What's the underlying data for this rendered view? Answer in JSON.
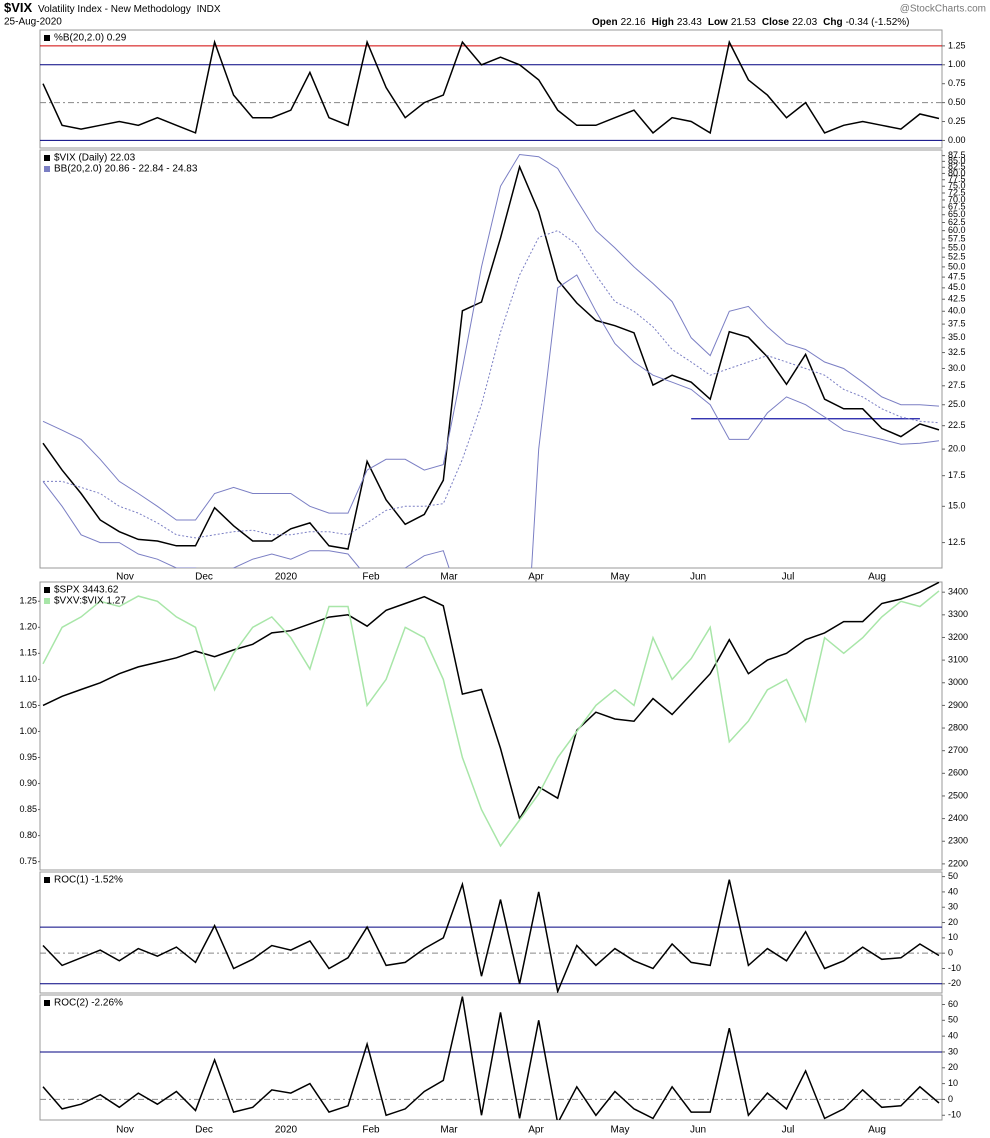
{
  "header": {
    "symbol": "$VIX",
    "name": "Volatility Index - New Methodology",
    "exchange": "INDX",
    "date": "25-Aug-2020",
    "quote": [
      {
        "label": "Open",
        "value": 22.16
      },
      {
        "label": "High",
        "value": 23.43
      },
      {
        "label": "Low",
        "value": 21.53
      },
      {
        "label": "Close",
        "value": 22.03
      },
      {
        "label": "Chg",
        "value": "-0.34 (-1.52%)"
      }
    ],
    "watermark": "@StockCharts.com"
  },
  "x_labels": [
    "Nov",
    "Dec",
    "2020",
    "Feb",
    "Mar",
    "Apr",
    "May",
    "Jun",
    "Jul",
    "Aug"
  ],
  "chart_data": [
    {
      "type": "line",
      "ylim": [
        -0.1,
        1.46
      ],
      "yticks": [
        {
          "value": 0,
          "label": "0.00"
        },
        0.25,
        {
          "value": 0.5,
          "label": "0.50"
        },
        0.75,
        {
          "value": 1,
          "label": "1.00"
        },
        1.25
      ],
      "reference_lines": [
        {
          "value": 1.25,
          "color": "#d00000"
        },
        {
          "value": 1,
          "color": "#000080"
        },
        {
          "value": 0.5,
          "color": "#888888",
          "dashed": true
        },
        {
          "value": 0,
          "color": "#000080"
        }
      ],
      "series": [
        {
          "name": "%B(20,2.0) 0.29",
          "color": "#000000",
          "values": [
            0.75,
            0.2,
            0.15,
            0.2,
            0.25,
            0.2,
            0.3,
            0.2,
            0.1,
            1.3,
            0.6,
            0.3,
            0.3,
            0.4,
            0.9,
            0.3,
            0.2,
            1.3,
            0.7,
            0.3,
            0.5,
            0.6,
            1.3,
            1.0,
            1.1,
            1.0,
            0.8,
            0.4,
            0.2,
            0.2,
            0.3,
            0.4,
            0.1,
            0.3,
            0.25,
            0.1,
            1.3,
            0.8,
            0.6,
            0.3,
            0.5,
            0.1,
            0.2,
            0.25,
            0.2,
            0.15,
            0.35,
            0.29
          ]
        }
      ]
    },
    {
      "type": "line",
      "log_scale": true,
      "ylim": [
        11,
        90
      ],
      "yticks": [
        12.5,
        {
          "value": 15,
          "label": "15.0"
        },
        17.5,
        {
          "value": 20,
          "label": "20.0"
        },
        22.5,
        {
          "value": 25,
          "label": "25.0"
        },
        27.5,
        {
          "value": 30,
          "label": "30.0"
        },
        32.5,
        {
          "value": 35,
          "label": "35.0"
        },
        37.5,
        {
          "value": 40,
          "label": "40.0"
        },
        42.5,
        {
          "value": 45,
          "label": "45.0"
        },
        47.5,
        {
          "value": 50,
          "label": "50.0"
        },
        52.5,
        {
          "value": 55,
          "label": "55.0"
        },
        57.5,
        {
          "value": 60,
          "label": "60.0"
        },
        62.5,
        {
          "value": 65,
          "label": "65.0"
        },
        67.5,
        {
          "value": 70,
          "label": "70.0"
        },
        72.5,
        {
          "value": 75,
          "label": "75.0"
        },
        77.5,
        {
          "value": 80,
          "label": "80.0"
        },
        82.5,
        {
          "value": 85,
          "label": "85.0"
        },
        87.5
      ],
      "hline": {
        "value": 23.3,
        "color": "#1a1aa6"
      },
      "series": [
        {
          "name": "$VIX (Daily) 22.03",
          "color": "#000000",
          "values": [
            20.6,
            18,
            16,
            14,
            13.2,
            12.7,
            12.6,
            12.3,
            12.3,
            14.9,
            13.6,
            12.6,
            12.6,
            13.4,
            13.8,
            12.3,
            12.1,
            18.8,
            15.5,
            13.7,
            14.4,
            17.1,
            40.1,
            41.9,
            57.8,
            82.7,
            66,
            46.8,
            41.7,
            38.2,
            37.2,
            35.9,
            27.6,
            29,
            28,
            25.7,
            36.1,
            35.1,
            31.8,
            27.7,
            32.2,
            25.7,
            24.5,
            24.5,
            22.2,
            21.3,
            22.7,
            22.03
          ]
        },
        {
          "name": "BB(20,2.0) 20.86 - 22.84 - 24.83",
          "color": "#7b7fc4",
          "upper": [
            23,
            22,
            21,
            19,
            17,
            16,
            15,
            14,
            14,
            16,
            16.5,
            16,
            16,
            16,
            15,
            14.5,
            14.5,
            18,
            19,
            19,
            18,
            18.5,
            30,
            50,
            75,
            88,
            87,
            82,
            70,
            60,
            55,
            50,
            46,
            42,
            35,
            32,
            40,
            41,
            37,
            34,
            33,
            31,
            30,
            28,
            26,
            25,
            25,
            24.83
          ],
          "values": [
            17,
            17,
            16.5,
            16,
            15,
            14.5,
            13.8,
            13,
            12.8,
            13,
            13.2,
            13.3,
            13,
            13,
            13.2,
            13.2,
            13,
            13.8,
            14.7,
            15,
            15,
            15.2,
            19,
            25,
            36,
            48,
            58,
            60,
            56,
            48,
            42,
            40,
            37,
            33,
            31,
            29,
            30,
            31,
            32,
            31,
            30,
            29,
            27,
            26,
            24.5,
            23.5,
            23,
            22.84
          ],
          "lower": [
            17,
            15,
            13,
            12.5,
            12.5,
            11.8,
            11.5,
            11,
            11,
            10.5,
            11,
            11.5,
            11.8,
            11.5,
            12,
            12,
            11.8,
            10.5,
            10.5,
            11,
            11.7,
            12,
            9,
            3,
            2,
            4,
            20,
            45,
            48,
            40,
            34,
            31,
            29,
            28,
            27,
            25,
            21,
            21,
            24,
            26,
            25,
            23.5,
            22,
            21.5,
            21,
            20.5,
            20.6,
            20.86
          ]
        }
      ]
    },
    {
      "type": "line",
      "ylim": [
        0.734,
        1.287
      ],
      "y2lim": [
        2173,
        3445
      ],
      "yticks": [
        0.75,
        {
          "value": 0.8,
          "label": "0.80"
        },
        0.85,
        {
          "value": 0.9,
          "label": "0.90"
        },
        0.95,
        {
          "value": 1,
          "label": "1.00"
        },
        1.05,
        {
          "value": 1.1,
          "label": "1.10"
        },
        1.15,
        {
          "value": 1.2,
          "label": "1.20"
        },
        1.25
      ],
      "y2ticks": [
        2200,
        2300,
        2400,
        2500,
        2600,
        2700,
        2800,
        2900,
        3000,
        3100,
        3200,
        3300,
        3400
      ],
      "series": [
        {
          "name": "$SPX 3443.62",
          "color": "#000000",
          "axis": "y2",
          "values": [
            2900,
            2940,
            2970,
            3000,
            3040,
            3070,
            3090,
            3110,
            3140,
            3115,
            3145,
            3170,
            3220,
            3230,
            3260,
            3290,
            3300,
            3250,
            3320,
            3350,
            3380,
            3340,
            2950,
            2970,
            2710,
            2400,
            2540,
            2490,
            2790,
            2870,
            2840,
            2830,
            2930,
            2860,
            2950,
            3040,
            3190,
            3040,
            3100,
            3130,
            3190,
            3220,
            3270,
            3270,
            3350,
            3370,
            3400,
            3443.62
          ]
        },
        {
          "name": "$VXV:$VIX 1.27",
          "color": "#a8e6a8",
          "values": [
            1.13,
            1.2,
            1.22,
            1.25,
            1.24,
            1.26,
            1.25,
            1.22,
            1.2,
            1.08,
            1.15,
            1.2,
            1.22,
            1.18,
            1.12,
            1.24,
            1.24,
            1.05,
            1.1,
            1.2,
            1.18,
            1.1,
            0.95,
            0.85,
            0.78,
            0.83,
            0.88,
            0.95,
            1.0,
            1.05,
            1.08,
            1.05,
            1.18,
            1.1,
            1.14,
            1.2,
            0.98,
            1.02,
            1.08,
            1.1,
            1.02,
            1.18,
            1.15,
            1.18,
            1.22,
            1.25,
            1.24,
            1.27
          ]
        }
      ]
    },
    {
      "type": "line",
      "ylim": [
        -26,
        53
      ],
      "yticks": [
        -20,
        -10,
        0,
        10,
        20,
        30,
        40,
        50
      ],
      "reference_lines": [
        {
          "value": 17,
          "color": "#000080"
        },
        {
          "value": -20,
          "color": "#000080"
        },
        {
          "value": 0,
          "color": "#888888",
          "dashed": true
        }
      ],
      "series": [
        {
          "name": "ROC(1) -1.52%",
          "color": "#000000",
          "values": [
            5,
            -8,
            -3,
            2,
            -5,
            3,
            -2,
            4,
            -6,
            18,
            -10,
            -4,
            5,
            2,
            8,
            -10,
            -3,
            17,
            -8,
            -6,
            3,
            10,
            45,
            -15,
            35,
            -20,
            40,
            -25,
            5,
            -8,
            3,
            -5,
            -10,
            6,
            -6,
            -8,
            48,
            -8,
            3,
            -5,
            14,
            -10,
            -5,
            4,
            -4,
            -3,
            6,
            -1.52
          ]
        }
      ]
    },
    {
      "type": "line",
      "ylim": [
        -13,
        66
      ],
      "yticks": [
        -10,
        0,
        10,
        20,
        30,
        40,
        50,
        60
      ],
      "reference_lines": [
        {
          "value": 30,
          "color": "#000080"
        },
        {
          "value": 0,
          "color": "#888888",
          "dashed": true
        }
      ],
      "series": [
        {
          "name": "ROC(2) -2.26%",
          "color": "#000000",
          "values": [
            8,
            -6,
            -3,
            3,
            -5,
            4,
            -3,
            5,
            -7,
            25,
            -8,
            -5,
            6,
            4,
            10,
            -8,
            -4,
            35,
            -10,
            -6,
            5,
            12,
            65,
            -10,
            55,
            -12,
            50,
            -15,
            8,
            -10,
            5,
            -6,
            -12,
            8,
            -8,
            -8,
            45,
            -10,
            4,
            -6,
            18,
            -12,
            -6,
            6,
            -5,
            -4,
            8,
            -2.26
          ]
        }
      ]
    }
  ]
}
